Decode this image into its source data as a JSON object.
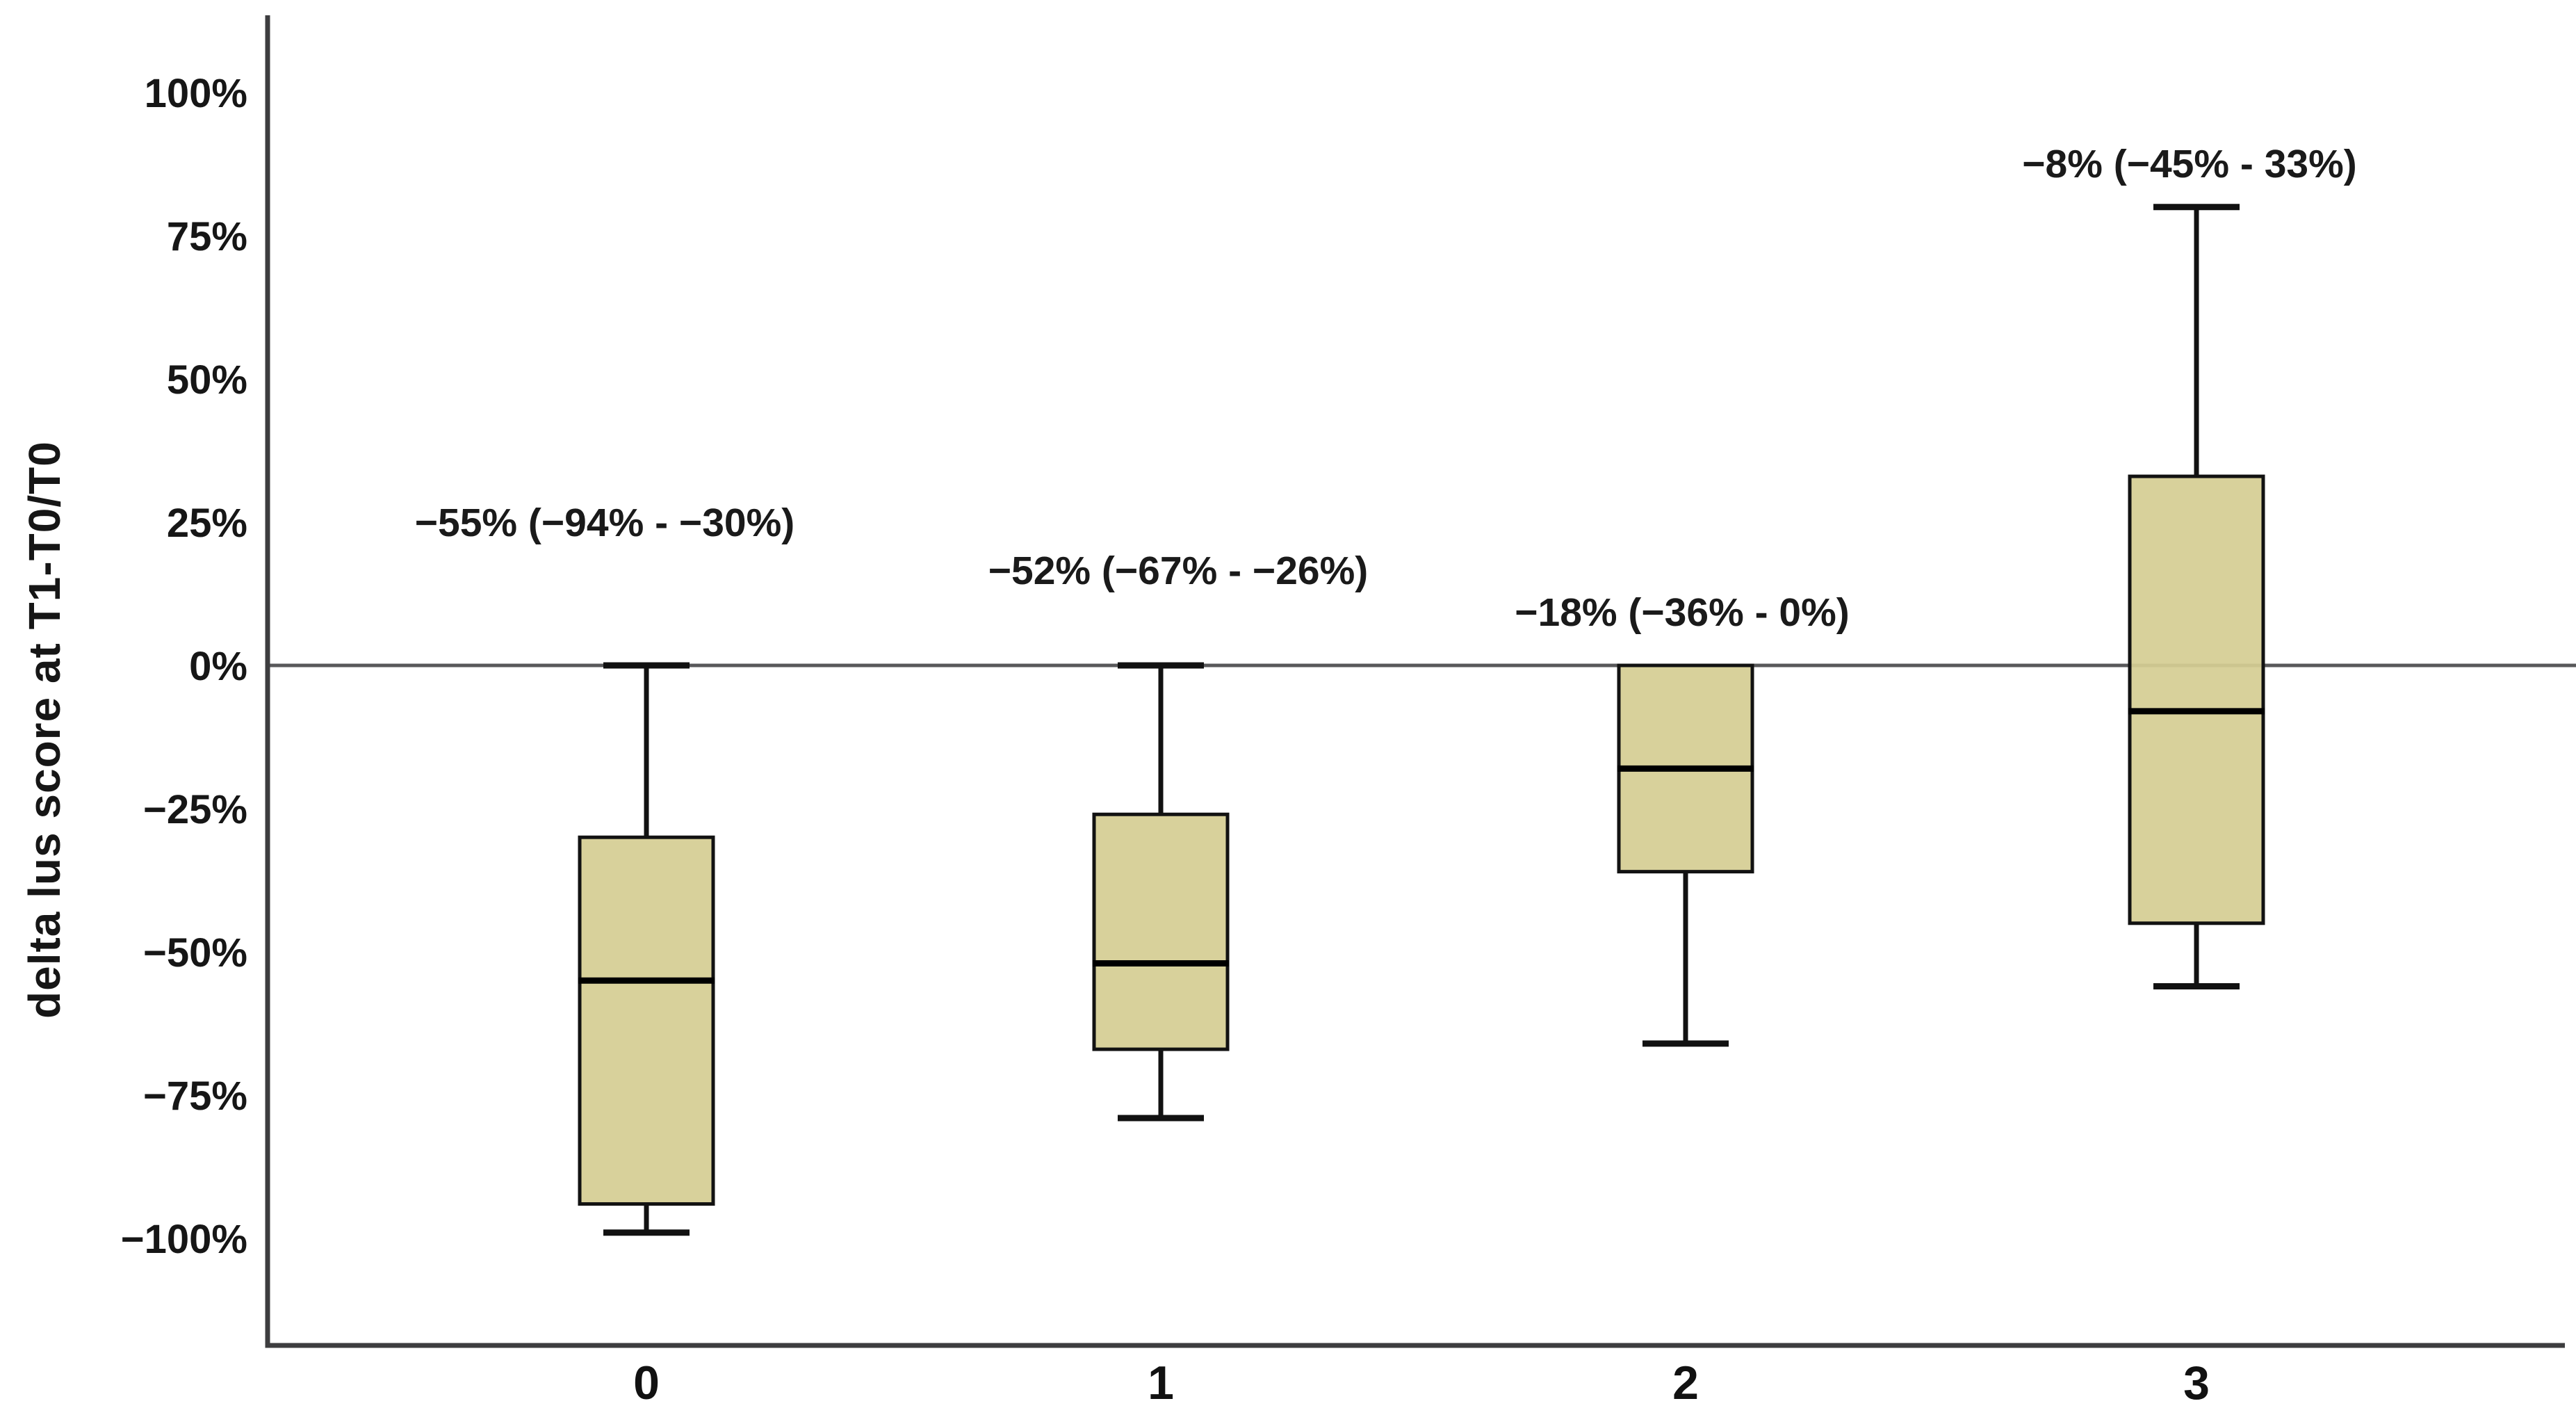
{
  "chart_data": {
    "type": "box",
    "title": "",
    "xlabel": "",
    "ylabel": "delta lus score at T1-T0/T0",
    "categories": [
      "0",
      "1",
      "2",
      "3"
    ],
    "y_ticks": [
      {
        "label": "100%",
        "value": 100
      },
      {
        "label": "75%",
        "value": 75
      },
      {
        "label": "50%",
        "value": 50
      },
      {
        "label": "25%",
        "value": 25
      },
      {
        "label": "0%",
        "value": 0
      },
      {
        "label": "−25%",
        "value": -25
      },
      {
        "label": "−50%",
        "value": -50
      },
      {
        "label": "−75%",
        "value": -75
      },
      {
        "label": "−100%",
        "value": -100
      }
    ],
    "ylim": [
      -112,
      112
    ],
    "zero_line_value": 0,
    "grid": false,
    "legend_position": "none",
    "series": [
      {
        "category": "0",
        "whisker_low": -99,
        "q1": -94,
        "median": -55,
        "q3": -30,
        "whisker_high": 0,
        "annotation": "−55% (−94% - −30%)"
      },
      {
        "category": "1",
        "whisker_low": -79,
        "q1": -67,
        "median": -52,
        "q3": -26,
        "whisker_high": 0,
        "annotation": "−52% (−67% - −26%)"
      },
      {
        "category": "2",
        "whisker_low": -66,
        "q1": -36,
        "median": -18,
        "q3": 0,
        "whisker_high": null,
        "annotation": "−18% (−36% - 0%)"
      },
      {
        "category": "3",
        "whisker_low": -56,
        "q1": -45,
        "median": -8,
        "q3": 33,
        "whisker_high": 80,
        "annotation": "−8% (−45% - 33%)"
      }
    ],
    "colors": {
      "box_fill": "#d5ce93",
      "box_stroke": "#121212",
      "median_line": "#000000",
      "whisker": "#111111",
      "zero_line": "#58585a",
      "axis": "#3d3d3f",
      "text": "#161616",
      "background": "#ffffff"
    }
  }
}
